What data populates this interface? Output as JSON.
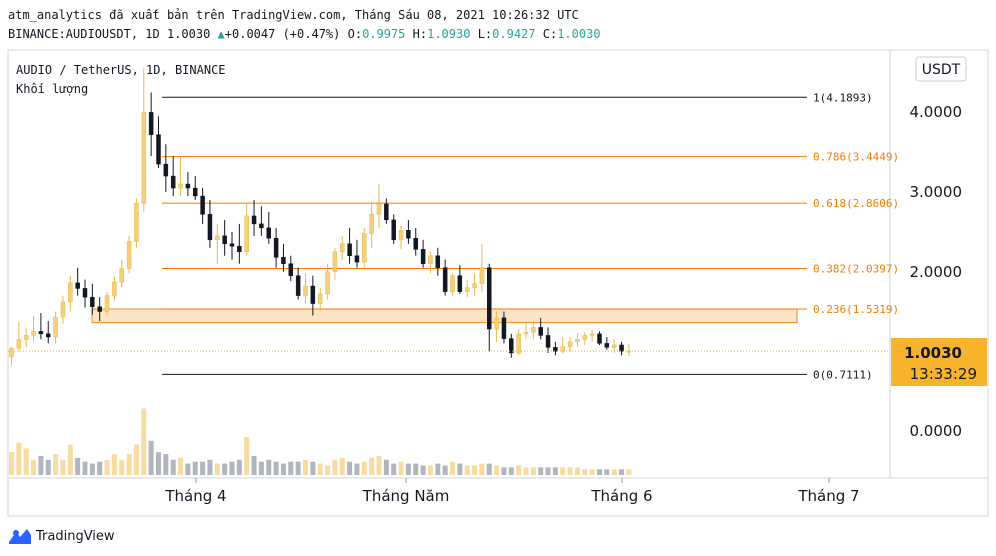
{
  "header": {
    "line1": "atm_analytics đã xuất bản trên TradingView.com, Tháng Sáu 08, 2021 10:26:32 UTC",
    "symbol": "BINANCE:AUDIOUSDT, 1D",
    "last": "1.0030",
    "change": "+0.0047 (+0.47%)",
    "o_label": "O:",
    "o": "0.9975",
    "h_label": "H:",
    "h": "1.0930",
    "l_label": "L:",
    "l": "0.9427",
    "c_label": "C:",
    "c": "1.0030"
  },
  "legend": {
    "title": "AUDIO / TetherUS, 1D, BINANCE",
    "volume": "Khối lượng"
  },
  "currency_button": "USDT",
  "price_tag": {
    "price": "1.0030",
    "countdown": "13:33:29"
  },
  "branding": "TradingView",
  "colors": {
    "up": "#f5d07a",
    "down": "#131722",
    "fib_line": "#f57c00",
    "fib_zone": "#fde2bf",
    "vol_up": "#f8dba0",
    "vol_down": "#b2b5be"
  },
  "chart_data": {
    "type": "candlestick",
    "title": "AUDIO / TetherUS, 1D, BINANCE",
    "y_axis_ticks": [
      "4.0000",
      "3.0000",
      "2.0000",
      "0.0000"
    ],
    "x_axis_ticks": [
      "Tháng 4",
      "Tháng Năm",
      "Tháng 6",
      "Tháng 7"
    ],
    "fib_levels": [
      {
        "label": "1(4.1893)",
        "value": 4.1893
      },
      {
        "label": "0.786(3.4449)",
        "value": 3.4449
      },
      {
        "label": "0.618(2.8606)",
        "value": 2.8606
      },
      {
        "label": "0.382(2.0397)",
        "value": 2.0397
      },
      {
        "label": "0.236(1.5319)",
        "value": 1.5319
      },
      {
        "label": "0(0.7111)",
        "value": 0.7111
      }
    ],
    "last_price": 1.003,
    "candles": [
      [
        0.93,
        1.06,
        0.82,
        1.04
      ],
      [
        1.04,
        1.38,
        1.0,
        1.15
      ],
      [
        1.15,
        1.3,
        1.05,
        1.2
      ],
      [
        1.2,
        1.45,
        1.12,
        1.25
      ],
      [
        1.25,
        1.48,
        1.15,
        1.22
      ],
      [
        1.22,
        1.38,
        1.1,
        1.18
      ],
      [
        1.18,
        1.5,
        1.1,
        1.43
      ],
      [
        1.43,
        1.7,
        1.35,
        1.62
      ],
      [
        1.62,
        1.95,
        1.5,
        1.86
      ],
      [
        1.86,
        2.05,
        1.7,
        1.79
      ],
      [
        1.79,
        1.9,
        1.55,
        1.68
      ],
      [
        1.68,
        1.85,
        1.46,
        1.56
      ],
      [
        1.56,
        1.68,
        1.38,
        1.5
      ],
      [
        1.5,
        1.74,
        1.45,
        1.7
      ],
      [
        1.7,
        1.95,
        1.64,
        1.87
      ],
      [
        1.87,
        2.15,
        1.8,
        2.04
      ],
      [
        2.04,
        2.45,
        1.98,
        2.38
      ],
      [
        2.38,
        2.92,
        2.3,
        2.86
      ],
      [
        2.86,
        4.55,
        2.75,
        4.0
      ],
      [
        4.0,
        4.25,
        3.45,
        3.72
      ],
      [
        3.72,
        3.95,
        3.3,
        3.35
      ],
      [
        3.35,
        3.6,
        3.0,
        3.2
      ],
      [
        3.2,
        3.45,
        2.95,
        3.05
      ],
      [
        3.05,
        3.45,
        2.95,
        3.1
      ],
      [
        3.1,
        3.25,
        2.95,
        3.05
      ],
      [
        3.05,
        3.2,
        2.9,
        2.95
      ],
      [
        2.95,
        3.05,
        2.6,
        2.72
      ],
      [
        2.72,
        2.9,
        2.3,
        2.4
      ],
      [
        2.4,
        2.6,
        2.1,
        2.45
      ],
      [
        2.45,
        2.65,
        2.2,
        2.35
      ],
      [
        2.35,
        2.5,
        2.15,
        2.32
      ],
      [
        2.32,
        2.6,
        2.1,
        2.25
      ],
      [
        2.25,
        2.85,
        2.2,
        2.7
      ],
      [
        2.7,
        2.9,
        2.45,
        2.6
      ],
      [
        2.6,
        2.82,
        2.45,
        2.55
      ],
      [
        2.55,
        2.75,
        2.35,
        2.42
      ],
      [
        2.42,
        2.55,
        2.05,
        2.18
      ],
      [
        2.18,
        2.35,
        2.0,
        2.1
      ],
      [
        2.1,
        2.2,
        1.88,
        1.95
      ],
      [
        1.95,
        2.05,
        1.65,
        1.7
      ],
      [
        1.7,
        1.98,
        1.6,
        1.82
      ],
      [
        1.82,
        1.95,
        1.45,
        1.6
      ],
      [
        1.6,
        1.8,
        1.5,
        1.72
      ],
      [
        1.72,
        2.1,
        1.65,
        2.0
      ],
      [
        2.0,
        2.3,
        1.9,
        2.25
      ],
      [
        2.25,
        2.45,
        2.15,
        2.35
      ],
      [
        2.35,
        2.55,
        2.1,
        2.2
      ],
      [
        2.2,
        2.4,
        2.05,
        2.12
      ],
      [
        2.12,
        2.55,
        2.05,
        2.48
      ],
      [
        2.48,
        2.88,
        2.3,
        2.72
      ],
      [
        2.72,
        3.1,
        2.55,
        2.85
      ],
      [
        2.85,
        2.92,
        2.6,
        2.65
      ],
      [
        2.65,
        2.72,
        2.35,
        2.4
      ],
      [
        2.4,
        2.58,
        2.28,
        2.52
      ],
      [
        2.52,
        2.65,
        2.35,
        2.42
      ],
      [
        2.42,
        2.55,
        2.2,
        2.28
      ],
      [
        2.28,
        2.4,
        2.05,
        2.1
      ],
      [
        2.1,
        2.25,
        1.98,
        2.2
      ],
      [
        2.2,
        2.3,
        1.95,
        2.05
      ],
      [
        2.05,
        2.15,
        1.7,
        1.75
      ],
      [
        1.75,
        1.98,
        1.7,
        1.95
      ],
      [
        1.95,
        2.08,
        1.72,
        1.75
      ],
      [
        1.75,
        1.9,
        1.68,
        1.8
      ],
      [
        1.8,
        1.98,
        1.7,
        1.85
      ],
      [
        1.85,
        2.35,
        1.75,
        2.05
      ],
      [
        2.05,
        2.1,
        1.0,
        1.28
      ],
      [
        1.28,
        1.5,
        1.12,
        1.42
      ],
      [
        1.42,
        1.5,
        1.1,
        1.16
      ],
      [
        1.16,
        1.22,
        0.92,
        0.98
      ],
      [
        0.98,
        1.28,
        0.95,
        1.22
      ],
      [
        1.22,
        1.35,
        1.15,
        1.24
      ],
      [
        1.24,
        1.38,
        1.15,
        1.3
      ],
      [
        1.3,
        1.42,
        1.15,
        1.2
      ],
      [
        1.2,
        1.3,
        0.98,
        1.05
      ],
      [
        1.05,
        1.12,
        0.95,
        1.0
      ],
      [
        1.0,
        1.18,
        0.97,
        1.06
      ],
      [
        1.06,
        1.18,
        1.0,
        1.12
      ],
      [
        1.12,
        1.22,
        1.06,
        1.15
      ],
      [
        1.15,
        1.24,
        1.08,
        1.2
      ],
      [
        1.2,
        1.27,
        1.12,
        1.22
      ],
      [
        1.22,
        1.25,
        1.08,
        1.1
      ],
      [
        1.1,
        1.18,
        1.02,
        1.05
      ],
      [
        1.05,
        1.15,
        0.98,
        1.08
      ],
      [
        1.08,
        1.12,
        0.95,
        1.0
      ],
      [
        0.998,
        1.093,
        0.943,
        1.003
      ]
    ],
    "volumes": [
      60,
      85,
      70,
      40,
      50,
      40,
      55,
      40,
      80,
      45,
      35,
      30,
      35,
      40,
      55,
      40,
      55,
      80,
      175,
      90,
      60,
      55,
      40,
      45,
      30,
      35,
      35,
      40,
      30,
      30,
      35,
      40,
      100,
      50,
      35,
      40,
      35,
      30,
      35,
      35,
      40,
      35,
      30,
      25,
      40,
      45,
      35,
      30,
      35,
      45,
      50,
      40,
      30,
      35,
      30,
      30,
      25,
      25,
      30,
      25,
      35,
      30,
      25,
      25,
      30,
      30,
      25,
      20,
      20,
      25,
      20,
      20,
      20,
      20,
      20,
      20,
      20,
      20,
      15,
      15,
      15,
      15,
      15,
      15,
      15
    ]
  }
}
